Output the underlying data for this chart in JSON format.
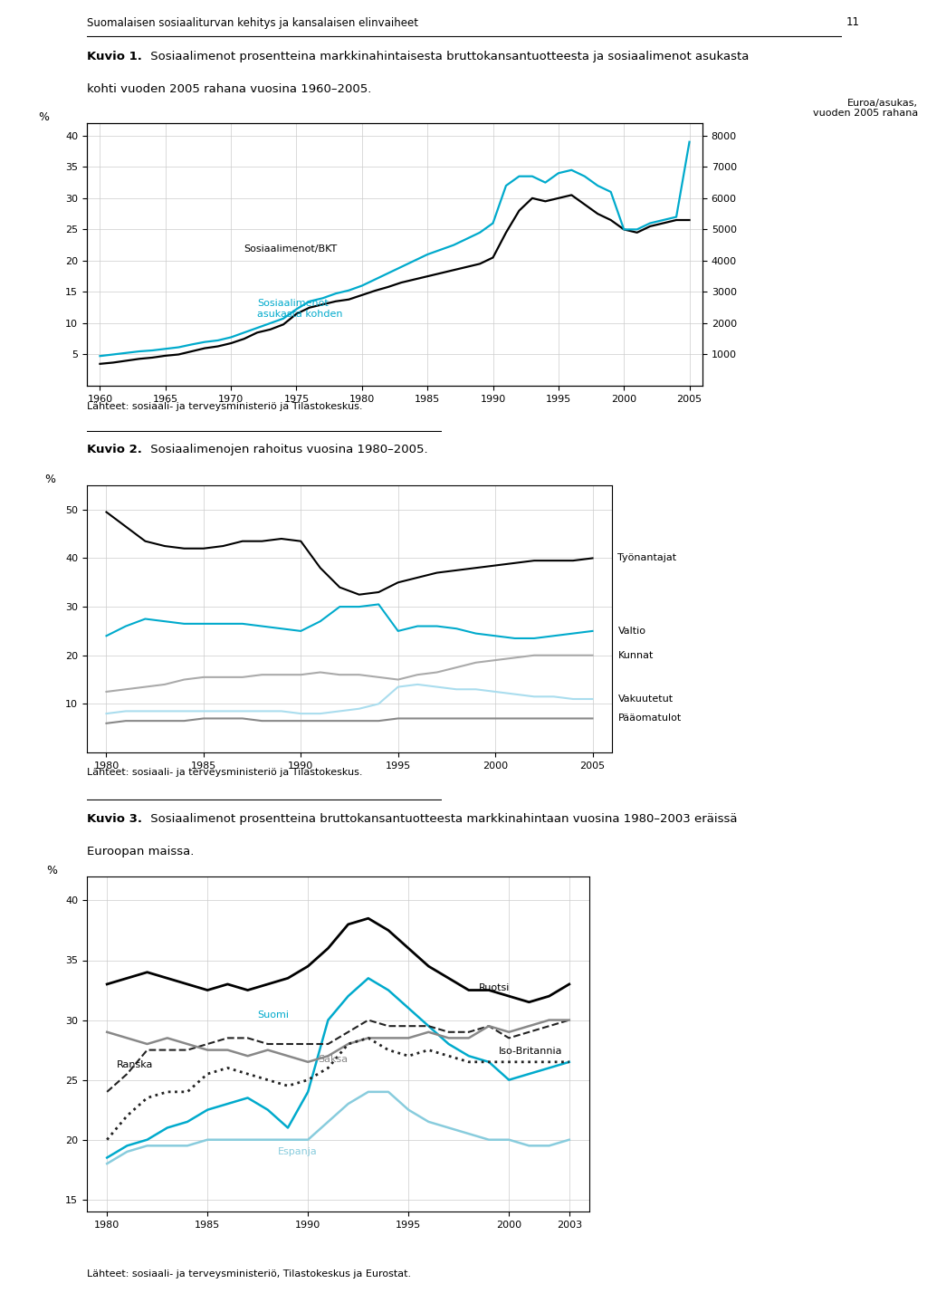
{
  "page_header": "Suomalaisen sosiaaliturvan kehitys ja kansalaisen elinvaiheet",
  "page_number": "11",
  "fig1": {
    "title_bold": "Kuvio 1.",
    "title_line1": " Sosiaalimenot prosentteina markkinahintaisesta bruttokansantuotteesta ja sosiaalimenot asukasta",
    "title_line2": "kohti vuoden 2005 rahana vuosina 1960–2005.",
    "ylabel_left": "%",
    "ylabel_right": "Euroa/asukas,\nvuoden 2005 rahana",
    "ylim_left": [
      0,
      42
    ],
    "ylim_right": [
      0,
      8400
    ],
    "yticks_left": [
      5,
      10,
      15,
      20,
      25,
      30,
      35,
      40
    ],
    "yticks_right": [
      1000,
      2000,
      3000,
      4000,
      5000,
      6000,
      7000,
      8000
    ],
    "xticks": [
      1960,
      1965,
      1970,
      1975,
      1980,
      1985,
      1990,
      1995,
      2000,
      2005
    ],
    "xlim": [
      1959,
      2006
    ],
    "source": "Lähteet: sosiaali- ja terveysministeriö ja Tilastokeskus.",
    "label_bkt": "Sosiaalimenot/BKT",
    "label_asukas": "Sosiaalimenot\nasukasta kohden",
    "bkt_years": [
      1960,
      1961,
      1962,
      1963,
      1964,
      1965,
      1966,
      1967,
      1968,
      1969,
      1970,
      1971,
      1972,
      1973,
      1974,
      1975,
      1976,
      1977,
      1978,
      1979,
      1980,
      1981,
      1982,
      1983,
      1984,
      1985,
      1986,
      1987,
      1988,
      1989,
      1990,
      1991,
      1992,
      1993,
      1994,
      1995,
      1996,
      1997,
      1998,
      1999,
      2000,
      2001,
      2002,
      2003,
      2004,
      2005
    ],
    "bkt_values": [
      3.5,
      3.7,
      4.0,
      4.3,
      4.5,
      4.8,
      5.0,
      5.5,
      6.0,
      6.3,
      6.8,
      7.5,
      8.5,
      9.0,
      9.8,
      11.5,
      12.5,
      13.0,
      13.5,
      13.8,
      14.5,
      15.2,
      15.8,
      16.5,
      17.0,
      17.5,
      18.0,
      18.5,
      19.0,
      19.5,
      20.5,
      24.5,
      28.0,
      30.0,
      29.5,
      30.0,
      30.5,
      29.0,
      27.5,
      26.5,
      25.0,
      24.5,
      25.5,
      26.0,
      26.5,
      26.5
    ],
    "asukas_years": [
      1960,
      1961,
      1962,
      1963,
      1964,
      1965,
      1966,
      1967,
      1968,
      1969,
      1970,
      1971,
      1972,
      1973,
      1974,
      1975,
      1976,
      1977,
      1978,
      1979,
      1980,
      1981,
      1982,
      1983,
      1984,
      1985,
      1986,
      1987,
      1988,
      1989,
      1990,
      1991,
      1992,
      1993,
      1994,
      1995,
      1996,
      1997,
      1998,
      1999,
      2000,
      2001,
      2002,
      2003,
      2004,
      2005
    ],
    "asukas_values": [
      950,
      1000,
      1050,
      1100,
      1130,
      1180,
      1230,
      1320,
      1400,
      1450,
      1550,
      1700,
      1850,
      2000,
      2150,
      2450,
      2700,
      2800,
      2950,
      3050,
      3200,
      3400,
      3600,
      3800,
      4000,
      4200,
      4350,
      4500,
      4700,
      4900,
      5200,
      6400,
      6700,
      6700,
      6500,
      6800,
      6900,
      6700,
      6400,
      6200,
      5000,
      5000,
      5200,
      5300,
      5400,
      7800
    ],
    "color_bkt": "#000000",
    "color_asukas": "#00aacc"
  },
  "fig2": {
    "title_bold": "Kuvio 2.",
    "title_line1": " Sosiaalimenojen rahoitus vuosina 1980–2005.",
    "ylabel_left": "%",
    "ylim": [
      0,
      55
    ],
    "yticks": [
      10,
      20,
      30,
      40,
      50
    ],
    "xticks": [
      1980,
      1985,
      1990,
      1995,
      2000,
      2005
    ],
    "xlim": [
      1979,
      2006
    ],
    "source": "Lähteet: sosiaali- ja terveysministeriö ja Tilastokeskus.",
    "labels": [
      "Työnantajat",
      "Valtio",
      "Kunnat",
      "Vakuutetut",
      "Pääomatulot"
    ],
    "colors": [
      "#000000",
      "#00aacc",
      "#aaaaaa",
      "#aaddee",
      "#888888"
    ],
    "years": [
      1980,
      1981,
      1982,
      1983,
      1984,
      1985,
      1986,
      1987,
      1988,
      1989,
      1990,
      1991,
      1992,
      1993,
      1994,
      1995,
      1996,
      1997,
      1998,
      1999,
      2000,
      2001,
      2002,
      2003,
      2004,
      2005
    ],
    "tyonantajat": [
      49.5,
      46.5,
      43.5,
      42.5,
      42.0,
      42.0,
      42.5,
      43.5,
      43.5,
      44.0,
      43.5,
      38.0,
      34.0,
      32.5,
      33.0,
      35.0,
      36.0,
      37.0,
      37.5,
      38.0,
      38.5,
      39.0,
      39.5,
      39.5,
      39.5,
      40.0
    ],
    "valtio": [
      24.0,
      26.0,
      27.5,
      27.0,
      26.5,
      26.5,
      26.5,
      26.5,
      26.0,
      25.5,
      25.0,
      27.0,
      30.0,
      30.0,
      30.5,
      25.0,
      26.0,
      26.0,
      25.5,
      24.5,
      24.0,
      23.5,
      23.5,
      24.0,
      24.5,
      25.0
    ],
    "kunnat": [
      12.5,
      13.0,
      13.5,
      14.0,
      15.0,
      15.5,
      15.5,
      15.5,
      16.0,
      16.0,
      16.0,
      16.5,
      16.0,
      16.0,
      15.5,
      15.0,
      16.0,
      16.5,
      17.5,
      18.5,
      19.0,
      19.5,
      20.0,
      20.0,
      20.0,
      20.0
    ],
    "vakuutetut": [
      8.0,
      8.5,
      8.5,
      8.5,
      8.5,
      8.5,
      8.5,
      8.5,
      8.5,
      8.5,
      8.0,
      8.0,
      8.5,
      9.0,
      10.0,
      13.5,
      14.0,
      13.5,
      13.0,
      13.0,
      12.5,
      12.0,
      11.5,
      11.5,
      11.0,
      11.0
    ],
    "paaomatulot": [
      6.0,
      6.5,
      6.5,
      6.5,
      6.5,
      7.0,
      7.0,
      7.0,
      6.5,
      6.5,
      6.5,
      6.5,
      6.5,
      6.5,
      6.5,
      7.0,
      7.0,
      7.0,
      7.0,
      7.0,
      7.0,
      7.0,
      7.0,
      7.0,
      7.0,
      7.0
    ]
  },
  "fig3": {
    "title_bold": "Kuvio 3.",
    "title_line1": " Sosiaalimenot prosentteina bruttokansantuotteesta markkinahintaan vuosina 1980–2003 eräissä",
    "title_line2": "Euroopan maissa.",
    "ylabel_left": "%",
    "ylim": [
      14,
      42
    ],
    "yticks": [
      15,
      20,
      25,
      30,
      35,
      40
    ],
    "xticks": [
      1980,
      1985,
      1990,
      1995,
      2000,
      2003
    ],
    "xlim": [
      1979,
      2004
    ],
    "source": "Lähteet: sosiaali- ja terveysministeriö, Tilastokeskus ja Eurostat.",
    "labels": [
      "Ruotsi",
      "Suomi",
      "Ranska",
      "Saksa",
      "Iso-Britannia",
      "Espanja"
    ],
    "years": [
      1980,
      1981,
      1982,
      1983,
      1984,
      1985,
      1986,
      1987,
      1988,
      1989,
      1990,
      1991,
      1992,
      1993,
      1994,
      1995,
      1996,
      1997,
      1998,
      1999,
      2000,
      2001,
      2002,
      2003
    ],
    "ruotsi": [
      33.0,
      33.5,
      34.0,
      33.5,
      33.0,
      32.5,
      33.0,
      32.5,
      33.0,
      33.5,
      34.5,
      36.0,
      38.0,
      38.5,
      37.5,
      36.0,
      34.5,
      33.5,
      32.5,
      32.5,
      32.0,
      31.5,
      32.0,
      33.0
    ],
    "suomi": [
      18.5,
      19.5,
      20.0,
      21.0,
      21.5,
      22.5,
      23.0,
      23.5,
      22.5,
      21.0,
      24.0,
      30.0,
      32.0,
      33.5,
      32.5,
      31.0,
      29.5,
      28.0,
      27.0,
      26.5,
      25.0,
      25.5,
      26.0,
      26.5
    ],
    "ranska": [
      24.0,
      25.5,
      27.5,
      27.5,
      27.5,
      28.0,
      28.5,
      28.5,
      28.0,
      28.0,
      28.0,
      28.0,
      29.0,
      30.0,
      29.5,
      29.5,
      29.5,
      29.0,
      29.0,
      29.5,
      28.5,
      29.0,
      29.5,
      30.0
    ],
    "saksa": [
      29.0,
      28.5,
      28.0,
      28.5,
      28.0,
      27.5,
      27.5,
      27.0,
      27.5,
      27.0,
      26.5,
      27.0,
      28.0,
      28.5,
      28.5,
      28.5,
      29.0,
      28.5,
      28.5,
      29.5,
      29.0,
      29.5,
      30.0,
      30.0
    ],
    "iso_britannia": [
      20.0,
      22.0,
      23.5,
      24.0,
      24.0,
      25.5,
      26.0,
      25.5,
      25.0,
      24.5,
      25.0,
      26.0,
      28.0,
      28.5,
      27.5,
      27.0,
      27.5,
      27.0,
      26.5,
      26.5,
      26.5,
      26.5,
      26.5,
      26.5
    ],
    "espanja": [
      18.0,
      19.0,
      19.5,
      19.5,
      19.5,
      20.0,
      20.0,
      20.0,
      20.0,
      20.0,
      20.0,
      21.5,
      23.0,
      24.0,
      24.0,
      22.5,
      21.5,
      21.0,
      20.5,
      20.0,
      20.0,
      19.5,
      19.5,
      20.0
    ]
  }
}
